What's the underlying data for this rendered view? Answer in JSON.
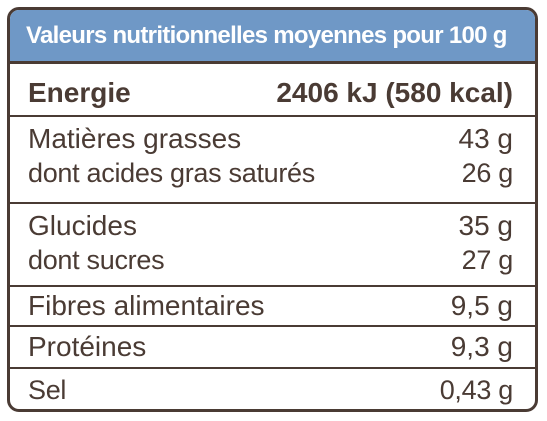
{
  "header": {
    "title": "Valeurs nutritionnelles moyennes pour 100 g"
  },
  "rows": [
    {
      "label": "Energie",
      "value": "2406 kJ (580 kcal)"
    },
    {
      "label": "Matières grasses",
      "value": "43 g"
    },
    {
      "label": "dont acides gras saturés",
      "value": "26 g"
    },
    {
      "label": "Glucides",
      "value": "35 g"
    },
    {
      "label": "dont sucres",
      "value": "27 g"
    },
    {
      "label": "Fibres alimentaires",
      "value": "9,5 g"
    },
    {
      "label": "Protéines",
      "value": "9,3 g"
    },
    {
      "label": "Sel",
      "value": "0,43 g"
    }
  ],
  "colors": {
    "header_background": "#6f98c6",
    "header_text": "#ffffff",
    "border_and_text": "#4a3b34"
  }
}
